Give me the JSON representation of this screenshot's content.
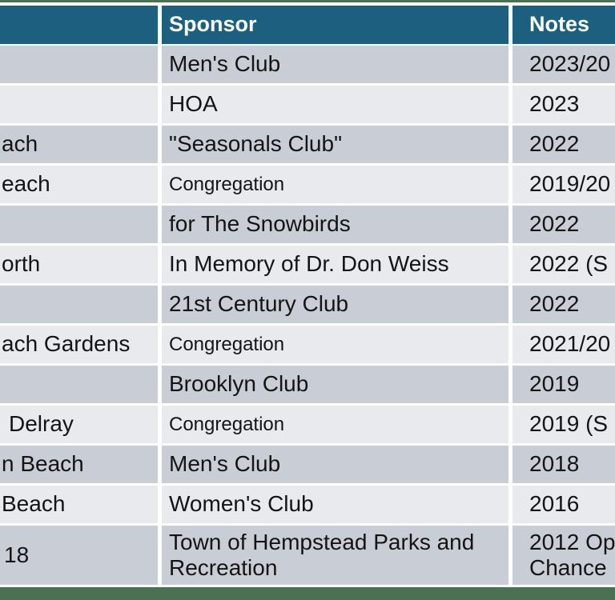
{
  "colors": {
    "header_bg": "#1C5F7E",
    "header_text": "#FFFFFF",
    "row_odd_bg": "#C9CDD5",
    "row_even_bg": "#E8EAEE",
    "accent_bar": "#4C7152",
    "cell_text": "#141414",
    "divider": "#FFFFFF"
  },
  "table": {
    "columns": [
      {
        "label": ""
      },
      {
        "label": "Sponsor"
      },
      {
        "label": "Notes"
      }
    ],
    "rows": [
      {
        "name": "",
        "sponsor": "Men's Club",
        "notes": "2023/20"
      },
      {
        "name": "",
        "sponsor": "HOA",
        "notes": "2023"
      },
      {
        "name": "ach",
        "sponsor": "\"Seasonals Club\"",
        "notes": "2022"
      },
      {
        "name": "each",
        "sponsor": "Congregation",
        "notes": "2019/20",
        "small": true
      },
      {
        "name": "",
        "sponsor": "for The Snowbirds",
        "notes": "2022"
      },
      {
        "name": "orth",
        "sponsor": "In Memory of Dr. Don Weiss",
        "notes": "2022 (S"
      },
      {
        "name": "",
        "sponsor": "21st Century Club",
        "notes": "2022"
      },
      {
        "name": "ach Gardens",
        "sponsor": "Congregation",
        "notes": "2021/20",
        "small": true
      },
      {
        "name": "",
        "sponsor": "Brooklyn Club",
        "notes": "2019"
      },
      {
        "name": "Delray",
        "sponsor": "Congregation",
        "notes": "2019 (S",
        "small": true,
        "indent": 11
      },
      {
        "name": "n Beach",
        "sponsor": "Men's Club",
        "notes": "2018"
      },
      {
        "name": "Beach",
        "sponsor": "Women's Club",
        "notes": "2016"
      },
      {
        "name": "18",
        "sponsor": "Town of Hempstead Parks  and Recreation",
        "notes_lines": [
          "2012 Op",
          "Chance"
        ],
        "tall": true,
        "indent": 5
      }
    ]
  }
}
